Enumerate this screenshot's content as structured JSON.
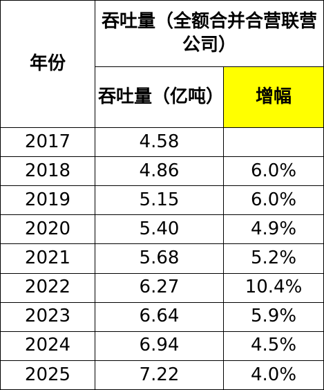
{
  "header": {
    "year": "年份",
    "group": "吞吐量（全额合并合营联营公司）",
    "throughput": "吞吐量（亿吨）",
    "growth": "增幅"
  },
  "rows": [
    [
      "2017",
      "4.58",
      null
    ],
    [
      "2018",
      "4.86",
      "6.0%"
    ],
    [
      "2019",
      "5.15",
      "6.0%"
    ],
    [
      "2020",
      "5.40",
      "4.9%"
    ],
    [
      "2021",
      "5.68",
      "5.2%"
    ],
    [
      "2022",
      "6.27",
      "10.4%"
    ],
    [
      "2023",
      "6.64",
      "5.9%"
    ],
    [
      "2024",
      "6.94",
      "4.5%"
    ],
    [
      "2025",
      "7.22",
      "4.0%"
    ]
  ]
}
